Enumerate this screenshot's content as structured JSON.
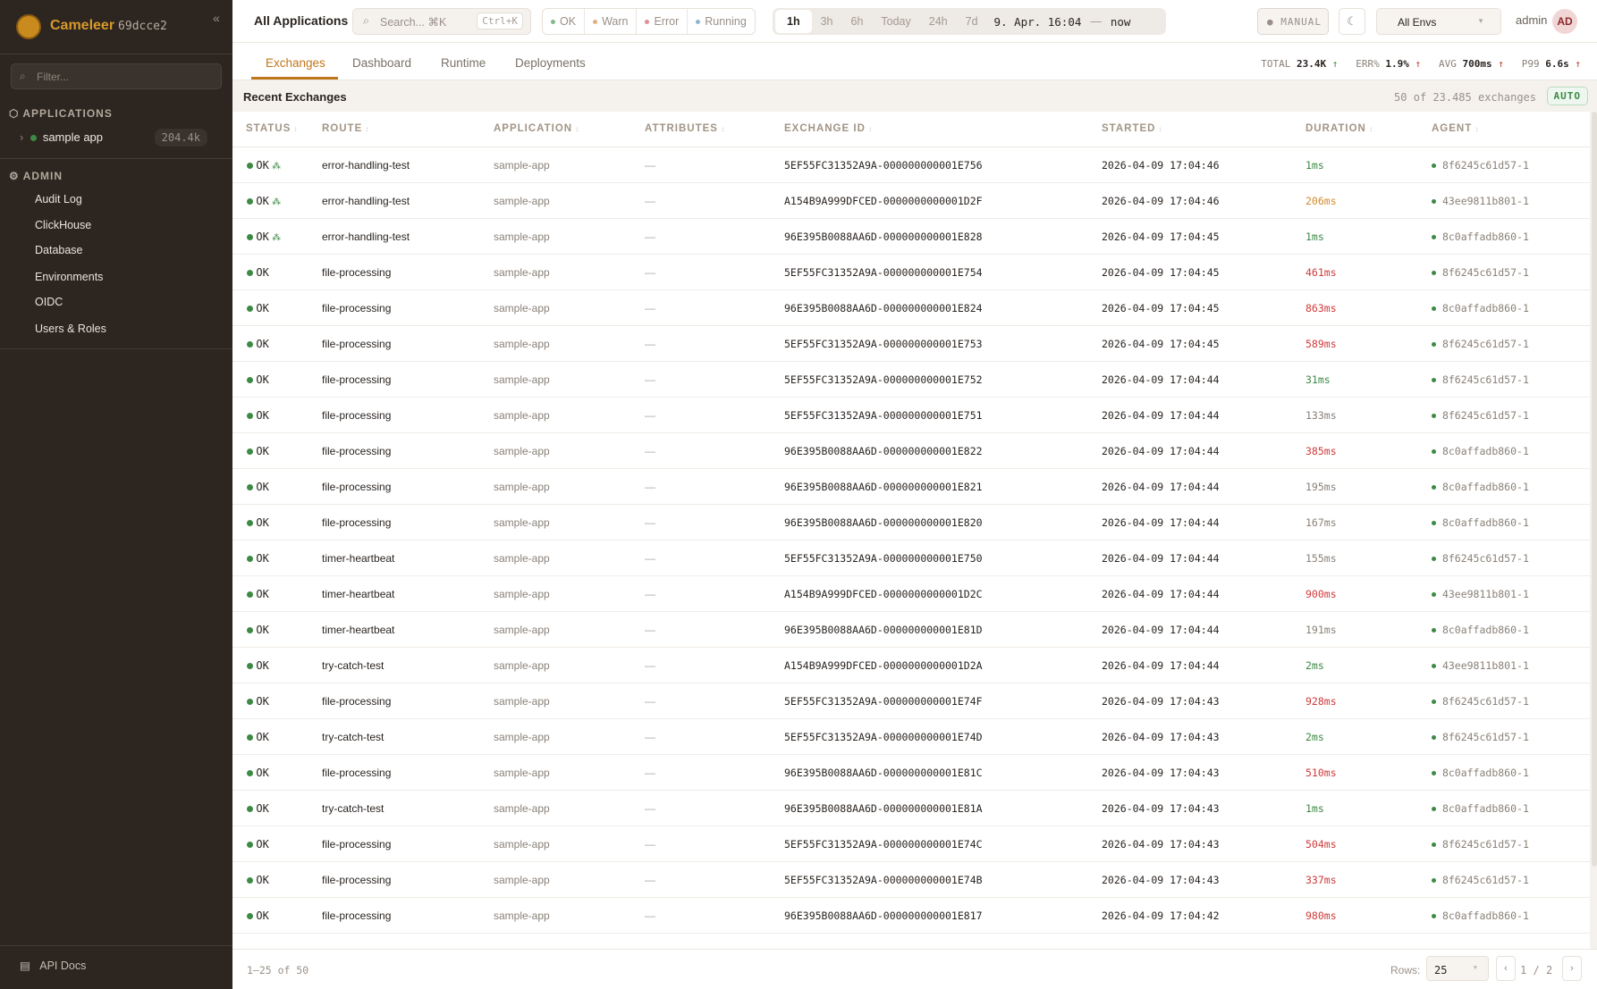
{
  "sidebar": {
    "brand": "Cameleer",
    "version": "69dcce2",
    "filter_placeholder": "Filter...",
    "applications_label": "APPLICATIONS",
    "apps": [
      {
        "name": "sample app",
        "count": "204.4k",
        "status_color": "#3d8a45"
      }
    ],
    "admin_label": "ADMIN",
    "admin_items": [
      "Audit Log",
      "ClickHouse",
      "Database",
      "Environments",
      "OIDC",
      "Users & Roles"
    ],
    "api_docs": "API Docs"
  },
  "topbar": {
    "title": "All Applications",
    "search_placeholder": "Search... ⌘K",
    "search_shortcut": "Ctrl+K",
    "status_filters": [
      {
        "label": "OK",
        "color": "#7fb88a"
      },
      {
        "label": "Warn",
        "color": "#e0b080"
      },
      {
        "label": "Error",
        "color": "#e09090"
      },
      {
        "label": "Running",
        "color": "#8ab8d0"
      }
    ],
    "time_ranges": [
      "1h",
      "3h",
      "6h",
      "Today",
      "24h",
      "7d"
    ],
    "active_range": "1h",
    "range_start": "9. Apr. 16:04",
    "range_sep": "—",
    "range_end": "now",
    "manual": "MANUAL",
    "env": "All Envs",
    "user": "admin",
    "avatar": "AD"
  },
  "tabs": {
    "items": [
      "Exchanges",
      "Dashboard",
      "Runtime",
      "Deployments"
    ],
    "active": "Exchanges"
  },
  "kpis": {
    "total_label": "TOTAL",
    "total": "23.4K",
    "err_label": "ERR%",
    "err": "1.9%",
    "avg_label": "AVG",
    "avg": "700ms",
    "p99_label": "P99",
    "p99": "6.6s"
  },
  "exchanges": {
    "title": "Recent Exchanges",
    "count_text": "50 of 23.485 exchanges",
    "auto": "AUTO",
    "columns": [
      "STATUS",
      "ROUTE",
      "APPLICATION",
      "ATTRIBUTES",
      "EXCHANGE ID",
      "STARTED",
      "DURATION",
      "AGENT"
    ],
    "rows": [
      {
        "status": "OK",
        "replay": true,
        "route": "error-handling-test",
        "app": "sample-app",
        "attr": "—",
        "id": "5EF55FC31352A9A-000000000001E756",
        "started": "2026-04-09 17:04:46",
        "duration": "1ms",
        "dc": "g",
        "agent": "8f6245c61d57-1"
      },
      {
        "status": "OK",
        "replay": true,
        "route": "error-handling-test",
        "app": "sample-app",
        "attr": "—",
        "id": "A154B9A999DFCED-0000000000001D2F",
        "started": "2026-04-09 17:04:46",
        "duration": "206ms",
        "dc": "o",
        "agent": "43ee9811b801-1"
      },
      {
        "status": "OK",
        "replay": true,
        "route": "error-handling-test",
        "app": "sample-app",
        "attr": "—",
        "id": "96E395B0088AA6D-000000000001E828",
        "started": "2026-04-09 17:04:45",
        "duration": "1ms",
        "dc": "g",
        "agent": "8c0affadb860-1"
      },
      {
        "status": "OK",
        "route": "file-processing",
        "app": "sample-app",
        "attr": "—",
        "id": "5EF55FC31352A9A-000000000001E754",
        "started": "2026-04-09 17:04:45",
        "duration": "461ms",
        "dc": "r",
        "agent": "8f6245c61d57-1"
      },
      {
        "status": "OK",
        "route": "file-processing",
        "app": "sample-app",
        "attr": "—",
        "id": "96E395B0088AA6D-000000000001E824",
        "started": "2026-04-09 17:04:45",
        "duration": "863ms",
        "dc": "r",
        "agent": "8c0affadb860-1"
      },
      {
        "status": "OK",
        "route": "file-processing",
        "app": "sample-app",
        "attr": "—",
        "id": "5EF55FC31352A9A-000000000001E753",
        "started": "2026-04-09 17:04:45",
        "duration": "589ms",
        "dc": "r",
        "agent": "8f6245c61d57-1"
      },
      {
        "status": "OK",
        "route": "file-processing",
        "app": "sample-app",
        "attr": "—",
        "id": "5EF55FC31352A9A-000000000001E752",
        "started": "2026-04-09 17:04:44",
        "duration": "31ms",
        "dc": "g",
        "agent": "8f6245c61d57-1"
      },
      {
        "status": "OK",
        "route": "file-processing",
        "app": "sample-app",
        "attr": "—",
        "id": "5EF55FC31352A9A-000000000001E751",
        "started": "2026-04-09 17:04:44",
        "duration": "133ms",
        "dc": "n",
        "agent": "8f6245c61d57-1"
      },
      {
        "status": "OK",
        "route": "file-processing",
        "app": "sample-app",
        "attr": "—",
        "id": "96E395B0088AA6D-000000000001E822",
        "started": "2026-04-09 17:04:44",
        "duration": "385ms",
        "dc": "r",
        "agent": "8c0affadb860-1"
      },
      {
        "status": "OK",
        "route": "file-processing",
        "app": "sample-app",
        "attr": "—",
        "id": "96E395B0088AA6D-000000000001E821",
        "started": "2026-04-09 17:04:44",
        "duration": "195ms",
        "dc": "n",
        "agent": "8c0affadb860-1"
      },
      {
        "status": "OK",
        "route": "file-processing",
        "app": "sample-app",
        "attr": "—",
        "id": "96E395B0088AA6D-000000000001E820",
        "started": "2026-04-09 17:04:44",
        "duration": "167ms",
        "dc": "n",
        "agent": "8c0affadb860-1"
      },
      {
        "status": "OK",
        "route": "timer-heartbeat",
        "app": "sample-app",
        "attr": "—",
        "id": "5EF55FC31352A9A-000000000001E750",
        "started": "2026-04-09 17:04:44",
        "duration": "155ms",
        "dc": "n",
        "agent": "8f6245c61d57-1"
      },
      {
        "status": "OK",
        "route": "timer-heartbeat",
        "app": "sample-app",
        "attr": "—",
        "id": "A154B9A999DFCED-0000000000001D2C",
        "started": "2026-04-09 17:04:44",
        "duration": "900ms",
        "dc": "r",
        "agent": "43ee9811b801-1"
      },
      {
        "status": "OK",
        "route": "timer-heartbeat",
        "app": "sample-app",
        "attr": "—",
        "id": "96E395B0088AA6D-000000000001E81D",
        "started": "2026-04-09 17:04:44",
        "duration": "191ms",
        "dc": "n",
        "agent": "8c0affadb860-1"
      },
      {
        "status": "OK",
        "route": "try-catch-test",
        "app": "sample-app",
        "attr": "—",
        "id": "A154B9A999DFCED-0000000000001D2A",
        "started": "2026-04-09 17:04:44",
        "duration": "2ms",
        "dc": "g",
        "agent": "43ee9811b801-1"
      },
      {
        "status": "OK",
        "route": "file-processing",
        "app": "sample-app",
        "attr": "—",
        "id": "5EF55FC31352A9A-000000000001E74F",
        "started": "2026-04-09 17:04:43",
        "duration": "928ms",
        "dc": "r",
        "agent": "8f6245c61d57-1"
      },
      {
        "status": "OK",
        "route": "try-catch-test",
        "app": "sample-app",
        "attr": "—",
        "id": "5EF55FC31352A9A-000000000001E74D",
        "started": "2026-04-09 17:04:43",
        "duration": "2ms",
        "dc": "g",
        "agent": "8f6245c61d57-1"
      },
      {
        "status": "OK",
        "route": "file-processing",
        "app": "sample-app",
        "attr": "—",
        "id": "96E395B0088AA6D-000000000001E81C",
        "started": "2026-04-09 17:04:43",
        "duration": "510ms",
        "dc": "r",
        "agent": "8c0affadb860-1"
      },
      {
        "status": "OK",
        "route": "try-catch-test",
        "app": "sample-app",
        "attr": "—",
        "id": "96E395B0088AA6D-000000000001E81A",
        "started": "2026-04-09 17:04:43",
        "duration": "1ms",
        "dc": "g",
        "agent": "8c0affadb860-1"
      },
      {
        "status": "OK",
        "route": "file-processing",
        "app": "sample-app",
        "attr": "—",
        "id": "5EF55FC31352A9A-000000000001E74C",
        "started": "2026-04-09 17:04:43",
        "duration": "504ms",
        "dc": "r",
        "agent": "8f6245c61d57-1"
      },
      {
        "status": "OK",
        "route": "file-processing",
        "app": "sample-app",
        "attr": "—",
        "id": "5EF55FC31352A9A-000000000001E74B",
        "started": "2026-04-09 17:04:43",
        "duration": "337ms",
        "dc": "r",
        "agent": "8f6245c61d57-1"
      },
      {
        "status": "OK",
        "route": "file-processing",
        "app": "sample-app",
        "attr": "—",
        "id": "96E395B0088AA6D-000000000001E817",
        "started": "2026-04-09 17:04:42",
        "duration": "980ms",
        "dc": "r",
        "agent": "8c0affadb860-1"
      }
    ]
  },
  "footer": {
    "range": "1–25 of 50",
    "rows_label": "Rows:",
    "rows_value": "25",
    "page": "1",
    "page_sep": "/",
    "pages": "2"
  }
}
